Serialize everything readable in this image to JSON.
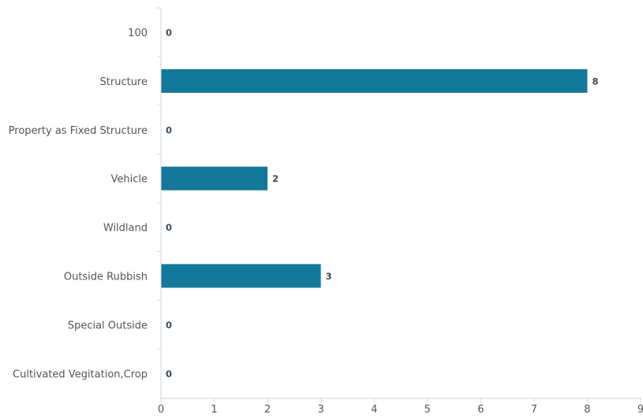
{
  "chart_data": {
    "type": "bar",
    "orientation": "horizontal",
    "categories": [
      "100",
      "Structure",
      "Property as Fixed Structure",
      "Vehicle",
      "Wildland",
      "Outside Rubbish",
      "Special Outside",
      "Cultivated Vegitation,Crop"
    ],
    "values": [
      0,
      8,
      0,
      2,
      0,
      3,
      0,
      0
    ],
    "xlim": [
      0,
      9
    ],
    "x_ticks": [
      "0",
      "1",
      "2",
      "3",
      "4",
      "5",
      "6",
      "7",
      "8",
      "9"
    ],
    "grid": false,
    "bar_color": "#137899",
    "data_labels": true
  }
}
